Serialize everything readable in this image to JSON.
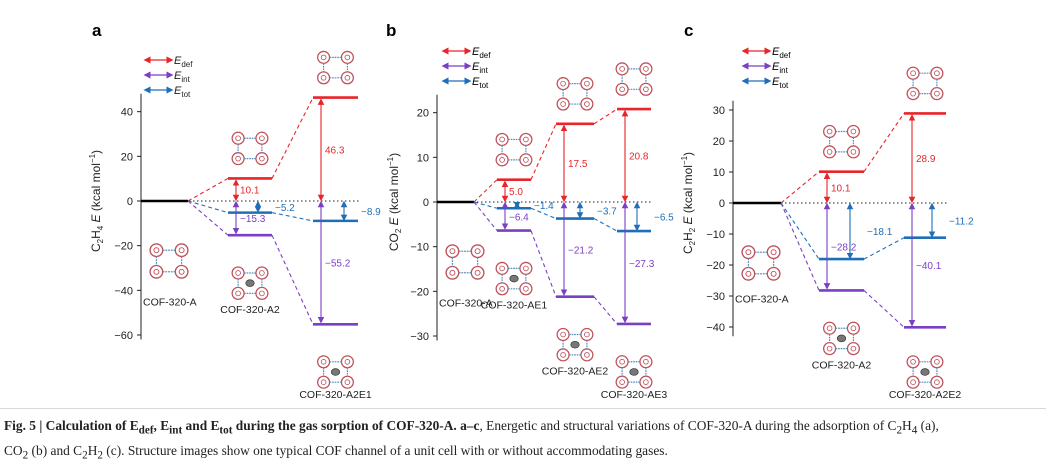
{
  "colors": {
    "def": "#e8252a",
    "int": "#7b3fc4",
    "tot": "#1f6fb8",
    "ref": "#000000"
  },
  "legend": {
    "def_label": "def",
    "int_label": "int",
    "tot_label": "tot",
    "symbol": "E"
  },
  "caption": {
    "fig_label": "Fig. 5",
    "title_text": "Calculation of E",
    "title_mid": "def",
    "title_rest": ", E",
    "title_int": "int",
    "title_and": " and E",
    "title_tot": "tot",
    "title_end": " during the gas sorption of COF-320-A.",
    "panels_label": "a–c",
    "body1": ", Energetic and structural variations of COF-320-A during the adsorption of C",
    "body2": "H",
    "body3": " (a),",
    "body4": "CO",
    "body5": " (b) and C",
    "body6": "H",
    "body7": " (c). Structure images show one typical COF channel of a unit cell with or without accommodating gases."
  },
  "chart_data": [
    {
      "panel": "a",
      "type": "energy-level-diagram",
      "ylabel_parts": [
        "C",
        "2",
        "H",
        "4",
        " E (kcal mol",
        "−1",
        ")"
      ],
      "ylim": [
        -62,
        48
      ],
      "yticks": [
        40,
        20,
        0,
        -20,
        -40,
        -60
      ],
      "zero_line": "dotted",
      "states": [
        {
          "name": "COF-320-A",
          "energy": 0
        },
        {
          "name": "COF-320-A2",
          "def": 10.1,
          "int": -15.3,
          "tot": -5.2
        },
        {
          "name": "COF-320-A2E1",
          "def": 46.3,
          "int": -55.2,
          "tot": -8.9
        }
      ],
      "labels": {
        "def1": "10.1",
        "int1": "−15.3",
        "tot1": "−5.2",
        "def2": "46.3",
        "int2": "−55.2",
        "tot2": "−8.9"
      }
    },
    {
      "panel": "b",
      "type": "energy-level-diagram",
      "ylabel_parts": [
        "CO",
        "2",
        "",
        "",
        " E (kcal mol",
        "−1",
        ")"
      ],
      "ylim": [
        -31,
        24
      ],
      "yticks": [
        20,
        10,
        0,
        -10,
        -20,
        -30
      ],
      "zero_line": "dotted",
      "states": [
        {
          "name": "COF-320-A",
          "energy": 0
        },
        {
          "name": "COF-320-AE1",
          "def": 5.0,
          "int": -6.4,
          "tot": -1.4
        },
        {
          "name": "COF-320-AE2",
          "def": 17.5,
          "int": -21.2,
          "tot": -3.7
        },
        {
          "name": "COF-320-AE3",
          "def": 20.8,
          "int": -27.3,
          "tot": -6.5
        }
      ],
      "labels": {
        "def1": "5.0",
        "int1": "−6.4",
        "tot1": "−1.4",
        "def2": "17.5",
        "int2": "−21.2",
        "tot2": "−3.7",
        "def3": "20.8",
        "int3": "−27.3",
        "tot3": "−6.5"
      }
    },
    {
      "panel": "c",
      "type": "energy-level-diagram",
      "ylabel_parts": [
        "C",
        "2",
        "H",
        "2",
        " E (kcal mol",
        "−1",
        ")"
      ],
      "ylim": [
        -43,
        33
      ],
      "yticks": [
        30,
        20,
        10,
        0,
        -10,
        -20,
        -30,
        -40
      ],
      "zero_line": "dotted",
      "states": [
        {
          "name": "COF-320-A",
          "energy": 0
        },
        {
          "name": "COF-320-A2",
          "def": 10.1,
          "int": -28.2,
          "tot": -18.1
        },
        {
          "name": "COF-320-A2E2",
          "def": 28.9,
          "int": -40.1,
          "tot": -11.2
        }
      ],
      "labels": {
        "def1": "10.1",
        "int1": "−28.2",
        "tot1": "−18.1",
        "def2": "28.9",
        "int2": "−40.1",
        "tot2": "−11.2"
      }
    }
  ]
}
